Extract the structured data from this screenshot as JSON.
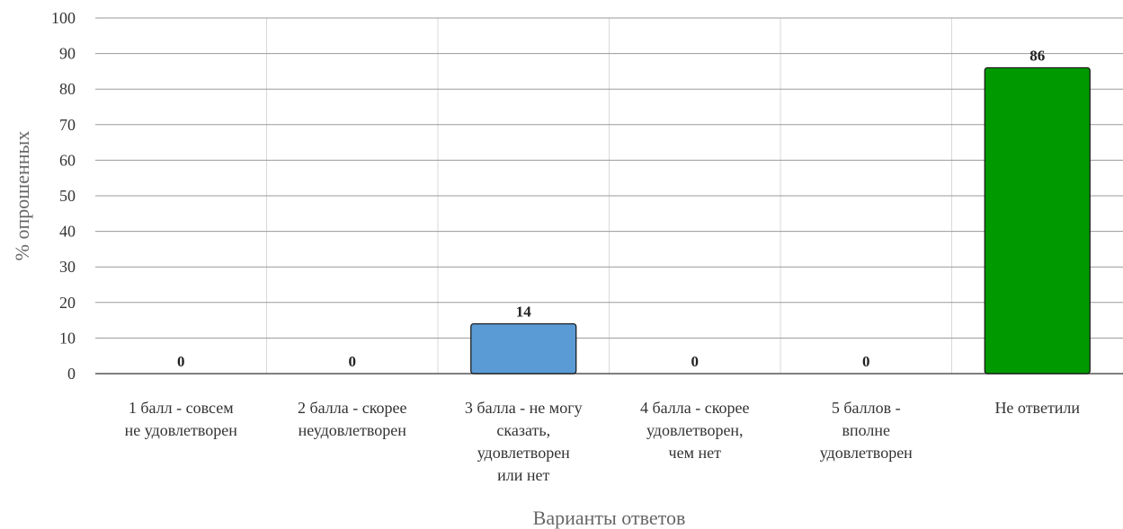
{
  "chart_data": {
    "type": "bar",
    "categories": [
      [
        "1 балл - совсем",
        "не удовлетворен"
      ],
      [
        "2 балла - скорее",
        "неудовлетворен"
      ],
      [
        "3 балла - не могу",
        "сказать,",
        "удовлетворен",
        "или нет"
      ],
      [
        "4 балла - скорее",
        "удовлетворен,",
        "чем нет"
      ],
      [
        "5 баллов -",
        "вполне",
        "удовлетворен"
      ],
      [
        "Не ответили"
      ]
    ],
    "values": [
      0,
      0,
      14,
      0,
      0,
      86
    ],
    "bar_colors": [
      "#5b9bd5",
      "#5b9bd5",
      "#5b9bd5",
      "#5b9bd5",
      "#5b9bd5",
      "#009900"
    ],
    "xlabel": "Варианты ответов",
    "ylabel": "% опрошенных",
    "ylim": [
      0,
      100
    ],
    "yticks": [
      0,
      10,
      20,
      30,
      40,
      50,
      60,
      70,
      80,
      90,
      100
    ],
    "grid": true,
    "data_labels": true
  }
}
